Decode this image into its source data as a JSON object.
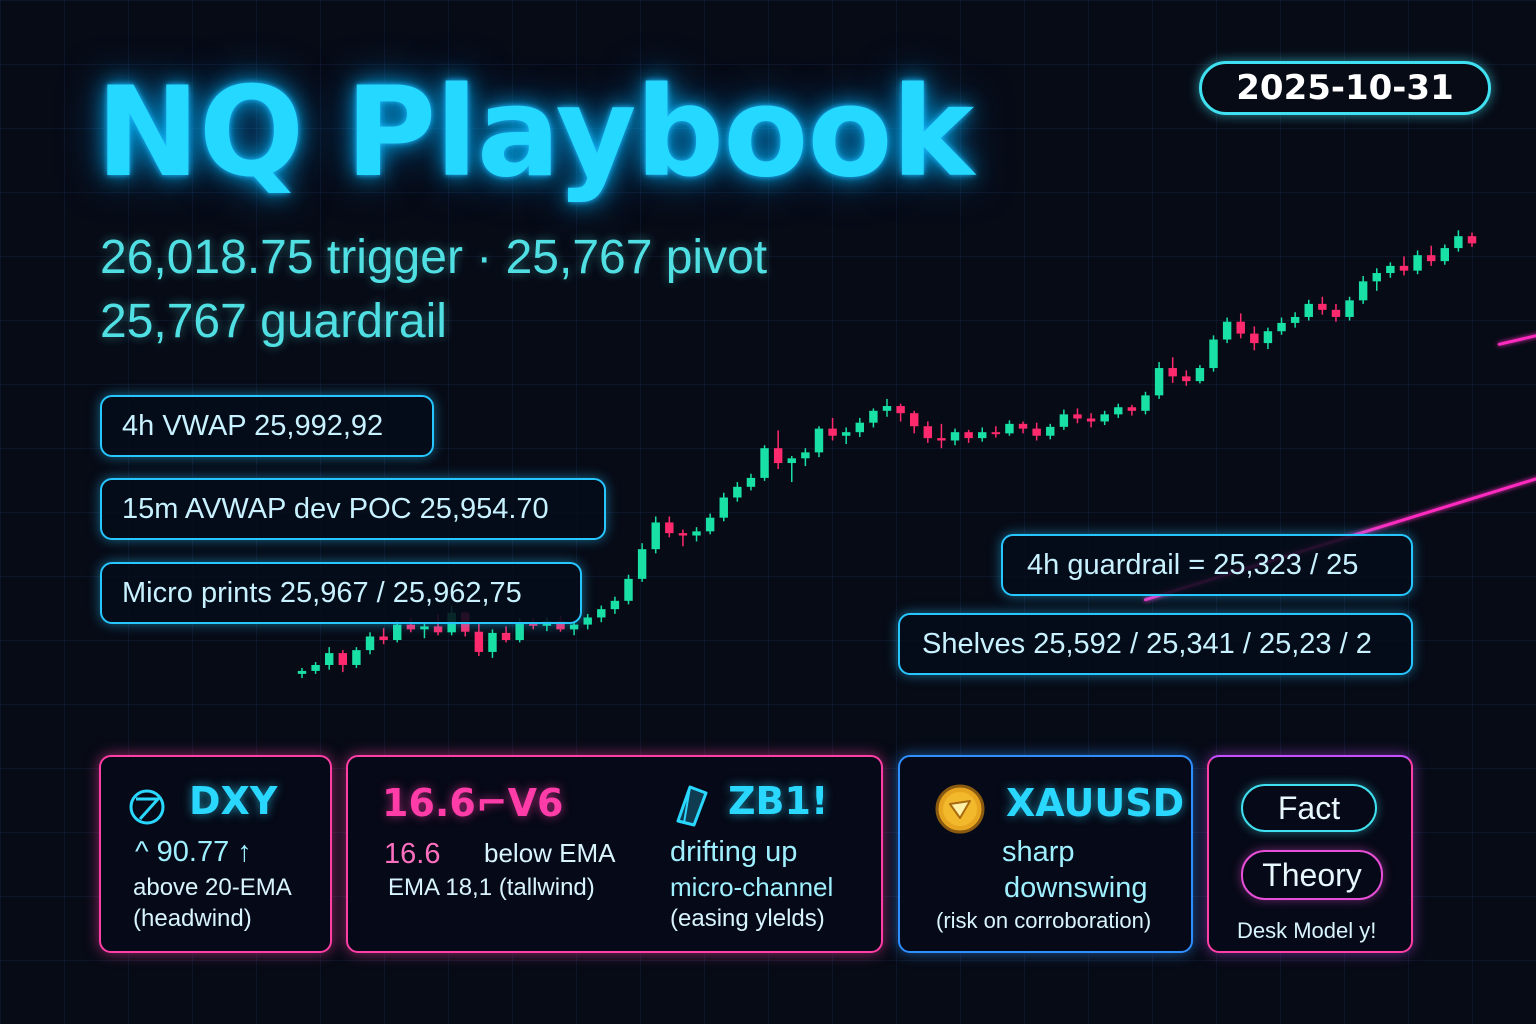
{
  "header": {
    "title": "NQ Playbook",
    "date": "2025-10-31",
    "subtitle_line1": "26,018.75 trigger · 25,767 pivot",
    "subtitle_line2": "25,767 guardrail"
  },
  "levels": {
    "vwap_4h": "4h VWAP 25,992,92",
    "avwap_15m": "15m AVWAP dev POC 25,954.70",
    "micro_prints": "Micro prints 25,967 / 25,962,75",
    "guardrail_4h": "4h guardrail  = 25,323 / 25",
    "shelves": "Shelves 25,592 / 25,341 / 25,23 / 2"
  },
  "cards": {
    "dxy": {
      "icon": "dxy-emblem-icon",
      "symbol": "DXY",
      "value": "^ 90.77 ↑",
      "line1": "above 20-EMA",
      "line2": "(headwind)"
    },
    "vix": {
      "headline": "16.6⌐V6",
      "value": "16.6",
      "status": "below EMA",
      "ema": "EMA 18,1 (tallwind)"
    },
    "zb": {
      "icon": "zb-prism-icon",
      "symbol": "ZB1!",
      "line1": "drifting up",
      "line2": "micro-channel",
      "line3": "(easing ylelds)"
    },
    "xau": {
      "icon": "gold-coin-icon",
      "symbol": "XAUUSD",
      "line1": "sharp",
      "line2": "downswing",
      "line3": "(risk on corroboration)"
    },
    "model": {
      "fact": "Fact",
      "theory": "Theory",
      "footer": "Desk Model y!"
    }
  },
  "colors": {
    "up_candle": "#19e0a4",
    "down_candle": "#ff2a6d",
    "channel": "#ff2bbf",
    "title_glow": "#25d8ff",
    "panel_blue": "#2f8fff",
    "panel_pink": "#ff3fa6"
  },
  "chart_data": {
    "type": "candlestick",
    "title": "",
    "xlabel": "",
    "ylabel": "",
    "ylim": [
      25280,
      26260
    ],
    "channel": {
      "upper": {
        "from": [
          88,
          25980
        ],
        "to": [
          134,
          26225
        ]
      },
      "lower": {
        "from": [
          62,
          25550
        ],
        "to": [
          134,
          26060
        ]
      }
    },
    "ohlc": [
      [
        25425,
        25435,
        25418,
        25430
      ],
      [
        25430,
        25445,
        25425,
        25440
      ],
      [
        25440,
        25470,
        25432,
        25460
      ],
      [
        25460,
        25465,
        25428,
        25440
      ],
      [
        25440,
        25470,
        25435,
        25465
      ],
      [
        25465,
        25495,
        25458,
        25488
      ],
      [
        25488,
        25502,
        25475,
        25482
      ],
      [
        25482,
        25515,
        25478,
        25508
      ],
      [
        25508,
        25520,
        25495,
        25500
      ],
      [
        25500,
        25512,
        25485,
        25505
      ],
      [
        25505,
        25525,
        25490,
        25495
      ],
      [
        25495,
        25540,
        25490,
        25528
      ],
      [
        25528,
        25530,
        25488,
        25496
      ],
      [
        25496,
        25510,
        25455,
        25462
      ],
      [
        25462,
        25500,
        25452,
        25494
      ],
      [
        25494,
        25505,
        25478,
        25482
      ],
      [
        25482,
        25518,
        25478,
        25512
      ],
      [
        25512,
        25518,
        25500,
        25506
      ],
      [
        25506,
        25520,
        25497,
        25514
      ],
      [
        25514,
        25522,
        25496,
        25500
      ],
      [
        25500,
        25515,
        25490,
        25508
      ],
      [
        25508,
        25526,
        25500,
        25520
      ],
      [
        25520,
        25540,
        25512,
        25534
      ],
      [
        25534,
        25555,
        25526,
        25548
      ],
      [
        25548,
        25592,
        25542,
        25585
      ],
      [
        25585,
        25645,
        25580,
        25635
      ],
      [
        25635,
        25690,
        25628,
        25680
      ],
      [
        25680,
        25690,
        25655,
        25662
      ],
      [
        25662,
        25668,
        25640,
        25658
      ],
      [
        25658,
        25672,
        25648,
        25665
      ],
      [
        25665,
        25695,
        25660,
        25688
      ],
      [
        25688,
        25730,
        25682,
        25722
      ],
      [
        25722,
        25748,
        25715,
        25740
      ],
      [
        25740,
        25762,
        25734,
        25755
      ],
      [
        25755,
        25810,
        25750,
        25805
      ],
      [
        25805,
        25835,
        25770,
        25780
      ],
      [
        25780,
        25792,
        25748,
        25788
      ],
      [
        25788,
        25805,
        25775,
        25798
      ],
      [
        25798,
        25842,
        25790,
        25838
      ],
      [
        25838,
        25856,
        25818,
        25826
      ],
      [
        25826,
        25840,
        25812,
        25832
      ],
      [
        25832,
        25856,
        25824,
        25848
      ],
      [
        25848,
        25872,
        25840,
        25868
      ],
      [
        25868,
        25888,
        25858,
        25876
      ],
      [
        25876,
        25880,
        25850,
        25864
      ],
      [
        25864,
        25868,
        25830,
        25842
      ],
      [
        25842,
        25850,
        25814,
        25822
      ],
      [
        25822,
        25846,
        25805,
        25818
      ],
      [
        25818,
        25838,
        25810,
        25832
      ],
      [
        25832,
        25836,
        25814,
        25822
      ],
      [
        25822,
        25840,
        25816,
        25832
      ],
      [
        25832,
        25842,
        25823,
        25830
      ],
      [
        25830,
        25852,
        25826,
        25846
      ],
      [
        25846,
        25850,
        25830,
        25838
      ],
      [
        25838,
        25848,
        25818,
        25826
      ],
      [
        25826,
        25846,
        25820,
        25841
      ],
      [
        25841,
        25870,
        25836,
        25862
      ],
      [
        25862,
        25872,
        25847,
        25855
      ],
      [
        25855,
        25864,
        25840,
        25850
      ],
      [
        25850,
        25868,
        25844,
        25862
      ],
      [
        25862,
        25880,
        25856,
        25874
      ],
      [
        25874,
        25878,
        25860,
        25868
      ],
      [
        25868,
        25900,
        25862,
        25894
      ],
      [
        25894,
        25950,
        25888,
        25940
      ],
      [
        25940,
        25958,
        25915,
        25926
      ],
      [
        25926,
        25936,
        25910,
        25918
      ],
      [
        25918,
        25945,
        25914,
        25940
      ],
      [
        25940,
        25995,
        25934,
        25988
      ],
      [
        25988,
        26025,
        25982,
        26018
      ],
      [
        26018,
        26032,
        25990,
        25998
      ],
      [
        25998,
        26010,
        25970,
        25982
      ],
      [
        25982,
        26008,
        25972,
        26002
      ],
      [
        26002,
        26025,
        25996,
        26016
      ],
      [
        26016,
        26034,
        26008,
        26026
      ],
      [
        26026,
        26055,
        26020,
        26048
      ],
      [
        26048,
        26060,
        26030,
        26038
      ],
      [
        26038,
        26048,
        26018,
        26026
      ],
      [
        26026,
        26060,
        26020,
        26054
      ],
      [
        26054,
        26095,
        26048,
        26086
      ],
      [
        26086,
        26108,
        26070,
        26100
      ],
      [
        26100,
        26118,
        26092,
        26112
      ],
      [
        26112,
        26128,
        26096,
        26104
      ],
      [
        26104,
        26138,
        26098,
        26130
      ],
      [
        26130,
        26146,
        26112,
        26120
      ],
      [
        26120,
        26148,
        26114,
        26142
      ],
      [
        26142,
        26172,
        26136,
        26162
      ],
      [
        26162,
        26168,
        26144,
        26150
      ]
    ]
  }
}
